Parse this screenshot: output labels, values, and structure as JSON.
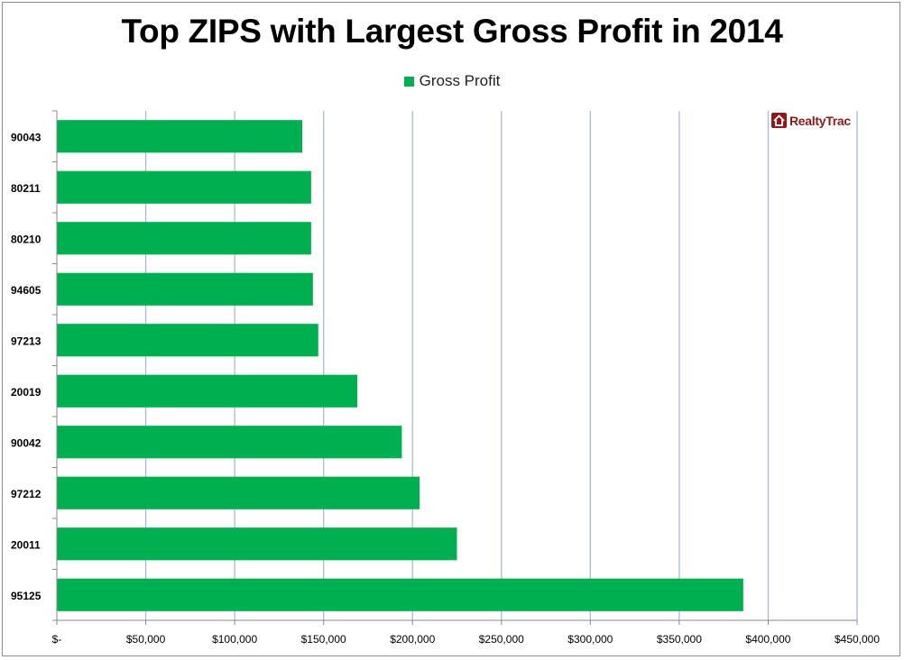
{
  "logo": {
    "text": "RealtyTrac"
  },
  "colors": {
    "bar": "#00b050",
    "grid": "#a9b9dc",
    "axis": "#888888",
    "logo": "#8b1a1a"
  },
  "chart_data": {
    "type": "bar",
    "orientation": "horizontal",
    "title": "Top ZIPS with Largest Gross Profit in 2014",
    "xlabel": "",
    "ylabel": "",
    "categories": [
      "90043",
      "80211",
      "80210",
      "94605",
      "97213",
      "20019",
      "90042",
      "97212",
      "20011",
      "95125"
    ],
    "series": [
      {
        "name": "Gross Profit",
        "values": [
          138000,
          143000,
          143000,
          144000,
          147000,
          169000,
          194000,
          204000,
          225000,
          386000
        ]
      }
    ],
    "xlim": [
      0,
      450000
    ],
    "xticks": [
      0,
      50000,
      100000,
      150000,
      200000,
      250000,
      300000,
      350000,
      400000,
      450000
    ],
    "xtick_labels": [
      "$-",
      "$50,000",
      "$100,000",
      "$150,000",
      "$200,000",
      "$250,000",
      "$300,000",
      "$350,000",
      "$400,000",
      "$450,000"
    ],
    "grid": "vertical",
    "legend_position": "top"
  }
}
